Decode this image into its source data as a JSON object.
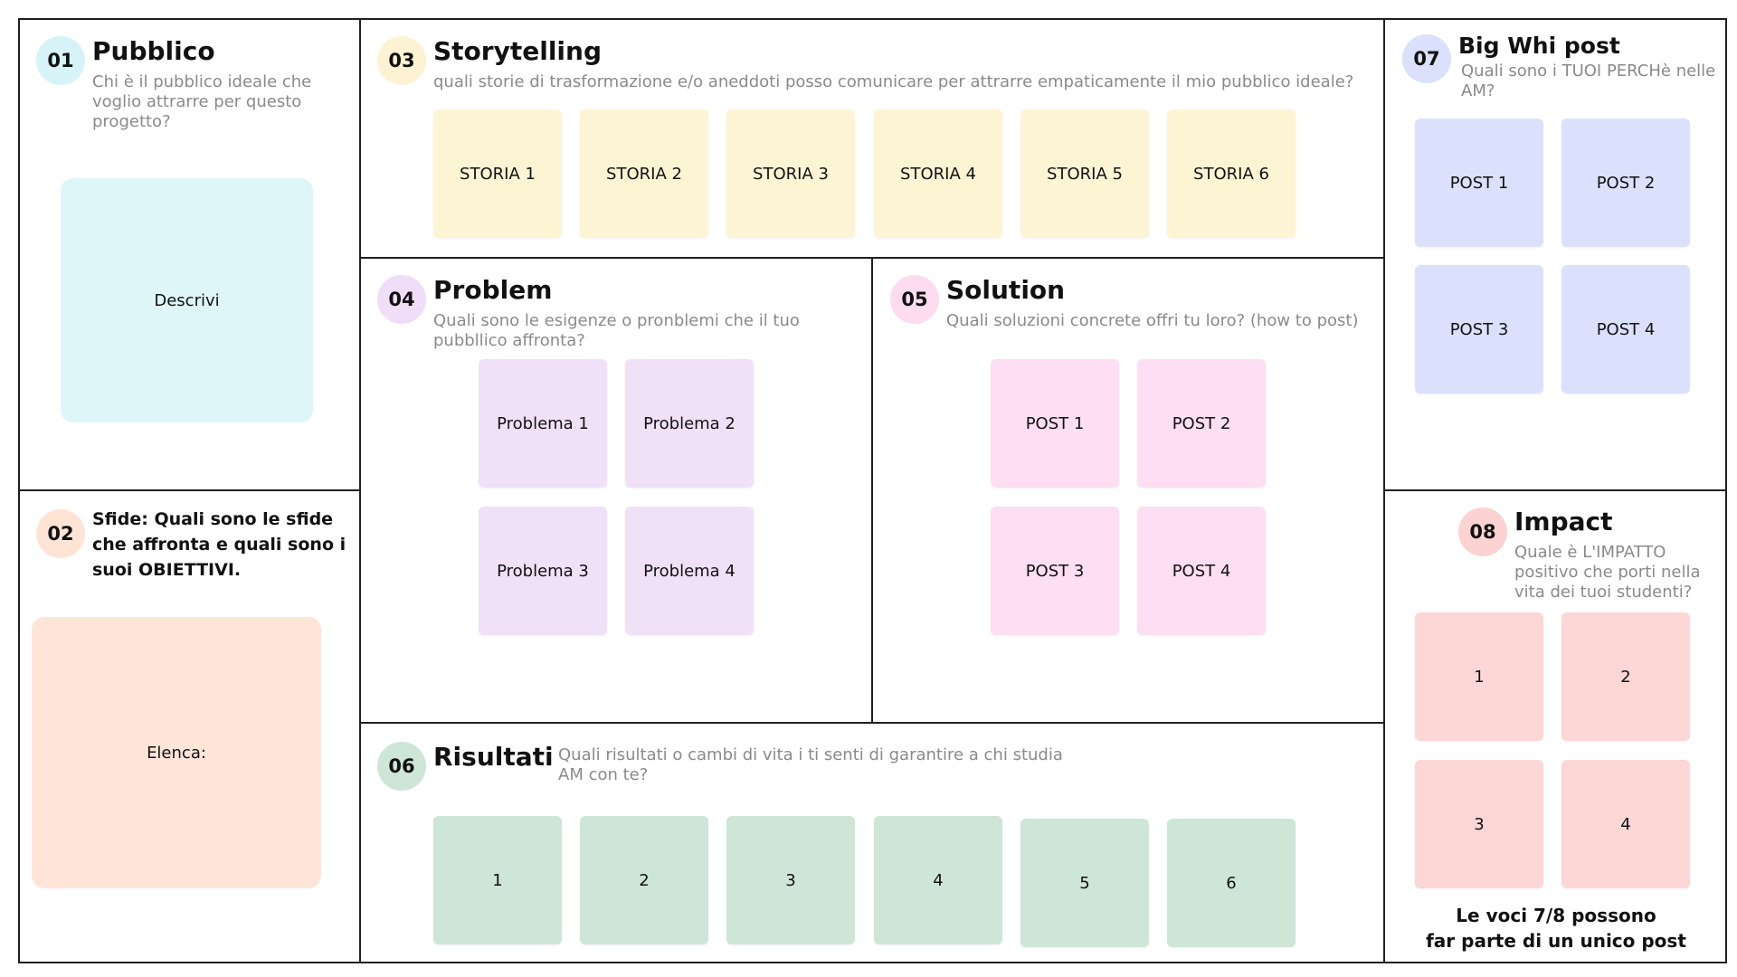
{
  "colors": {
    "pubblico": "#dff6f8",
    "pubblico_circle": "#d6f4f8",
    "sfide": "#ffe4d8",
    "sfide_circle": "#ffe4d6",
    "storytelling": "#fdf4d4",
    "storytelling_circle": "#fdf3d3",
    "problem": "#f0e0f8",
    "problem_circle": "#f0ddf8",
    "solution": "#fddef2",
    "solution_circle": "#fddcf0",
    "risultati": "#cde6d8",
    "risultati_circle": "#cde6d7",
    "bigwhy": "#dbe1fc",
    "bigwhy_circle": "#dbe1fc",
    "impact": "#fdd6d6",
    "impact_circle": "#fdd2d2"
  },
  "pubblico": {
    "number": "01",
    "title": "Pubblico",
    "description": "Chi è il pubblico ideale che voglio attrarre per questo progetto?",
    "card": "Descrivi"
  },
  "sfide": {
    "number": "02",
    "description": "Sfide: Quali sono le sfide che affronta e quali sono i suoi OBIETTIVI.",
    "card": "Elenca:"
  },
  "storytelling": {
    "number": "03",
    "title": "Storytelling",
    "description": "quali storie di trasformazione  e/o aneddoti posso comunicare per attrarre empaticamente il mio pubblico ideale?",
    "notes": [
      "STORIA 1",
      "STORIA 2",
      "STORIA 3",
      "STORIA 4",
      "STORIA 5",
      "STORIA 6"
    ]
  },
  "problem": {
    "number": "04",
    "title": "Problem",
    "description": "Quali sono le esigenze o pronblemi che il tuo pubbllico affronta?",
    "notes": [
      "Problema 1",
      "Problema 2",
      "Problema 3",
      "Problema 4"
    ]
  },
  "solution": {
    "number": "05",
    "title": "Solution",
    "description": "Quali soluzioni concrete offri tu loro? (how to post)",
    "notes": [
      "POST 1",
      "POST 2",
      "POST 3",
      "POST 4"
    ]
  },
  "risultati": {
    "number": "06",
    "title": "Risultati",
    "description": "Quali risultati o cambi di vita i ti senti di garantire a chi studia AM con te?",
    "notes": [
      "1",
      "2",
      "3",
      "4",
      "5",
      "6"
    ]
  },
  "bigwhy": {
    "number": "07",
    "title": "Big Whi post",
    "description": "Quali sono i TUOI PERCHè nelle AM?",
    "notes": [
      "POST 1",
      "POST 2",
      "POST 3",
      "POST 4"
    ]
  },
  "impact": {
    "number": "08",
    "title": "Impact",
    "description": "Quale è L'IMPATTO positivo che porti nella vita dei tuoi studenti?",
    "notes": [
      "1",
      "2",
      "3",
      "4"
    ],
    "footer_line1": "Le voci 7/8 possono",
    "footer_line2": "far parte di un unico post"
  }
}
